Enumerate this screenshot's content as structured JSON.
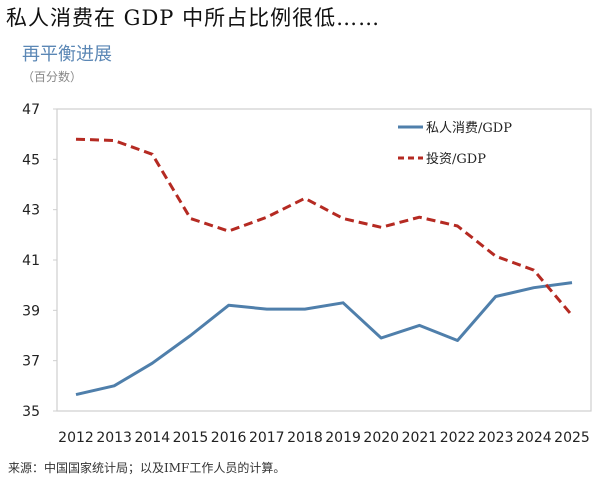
{
  "headline": "私人消费在 GDP 中所占比例很低……",
  "source": "来源：中国国家统计局；以及IMF工作人员的计算。",
  "chart_data": {
    "type": "line",
    "title": "再平衡进展",
    "subtitle": "（百分数）",
    "xlabel": "",
    "ylabel": "",
    "ylim": [
      35,
      47
    ],
    "yticks": [
      35,
      37,
      39,
      41,
      43,
      45,
      47
    ],
    "grid": false,
    "legend_position": "top-right",
    "categories": [
      "2012",
      "2013",
      "2014",
      "2015",
      "2016",
      "2017",
      "2018",
      "2019",
      "2020",
      "2021",
      "2022",
      "2023",
      "2024",
      "2025"
    ],
    "series": [
      {
        "name": "私人消费/GDP",
        "color": "#4f7fab",
        "style": "solid",
        "values": [
          35.65,
          36.0,
          36.9,
          38.0,
          39.2,
          39.05,
          39.05,
          39.3,
          37.9,
          38.4,
          37.8,
          39.55,
          39.9,
          40.1
        ]
      },
      {
        "name": "投资/GDP",
        "color": "#b52a22",
        "style": "dashed",
        "values": [
          45.8,
          45.75,
          45.2,
          42.65,
          42.15,
          42.7,
          43.45,
          42.65,
          42.3,
          42.7,
          42.35,
          41.15,
          40.6,
          38.8
        ]
      }
    ]
  }
}
